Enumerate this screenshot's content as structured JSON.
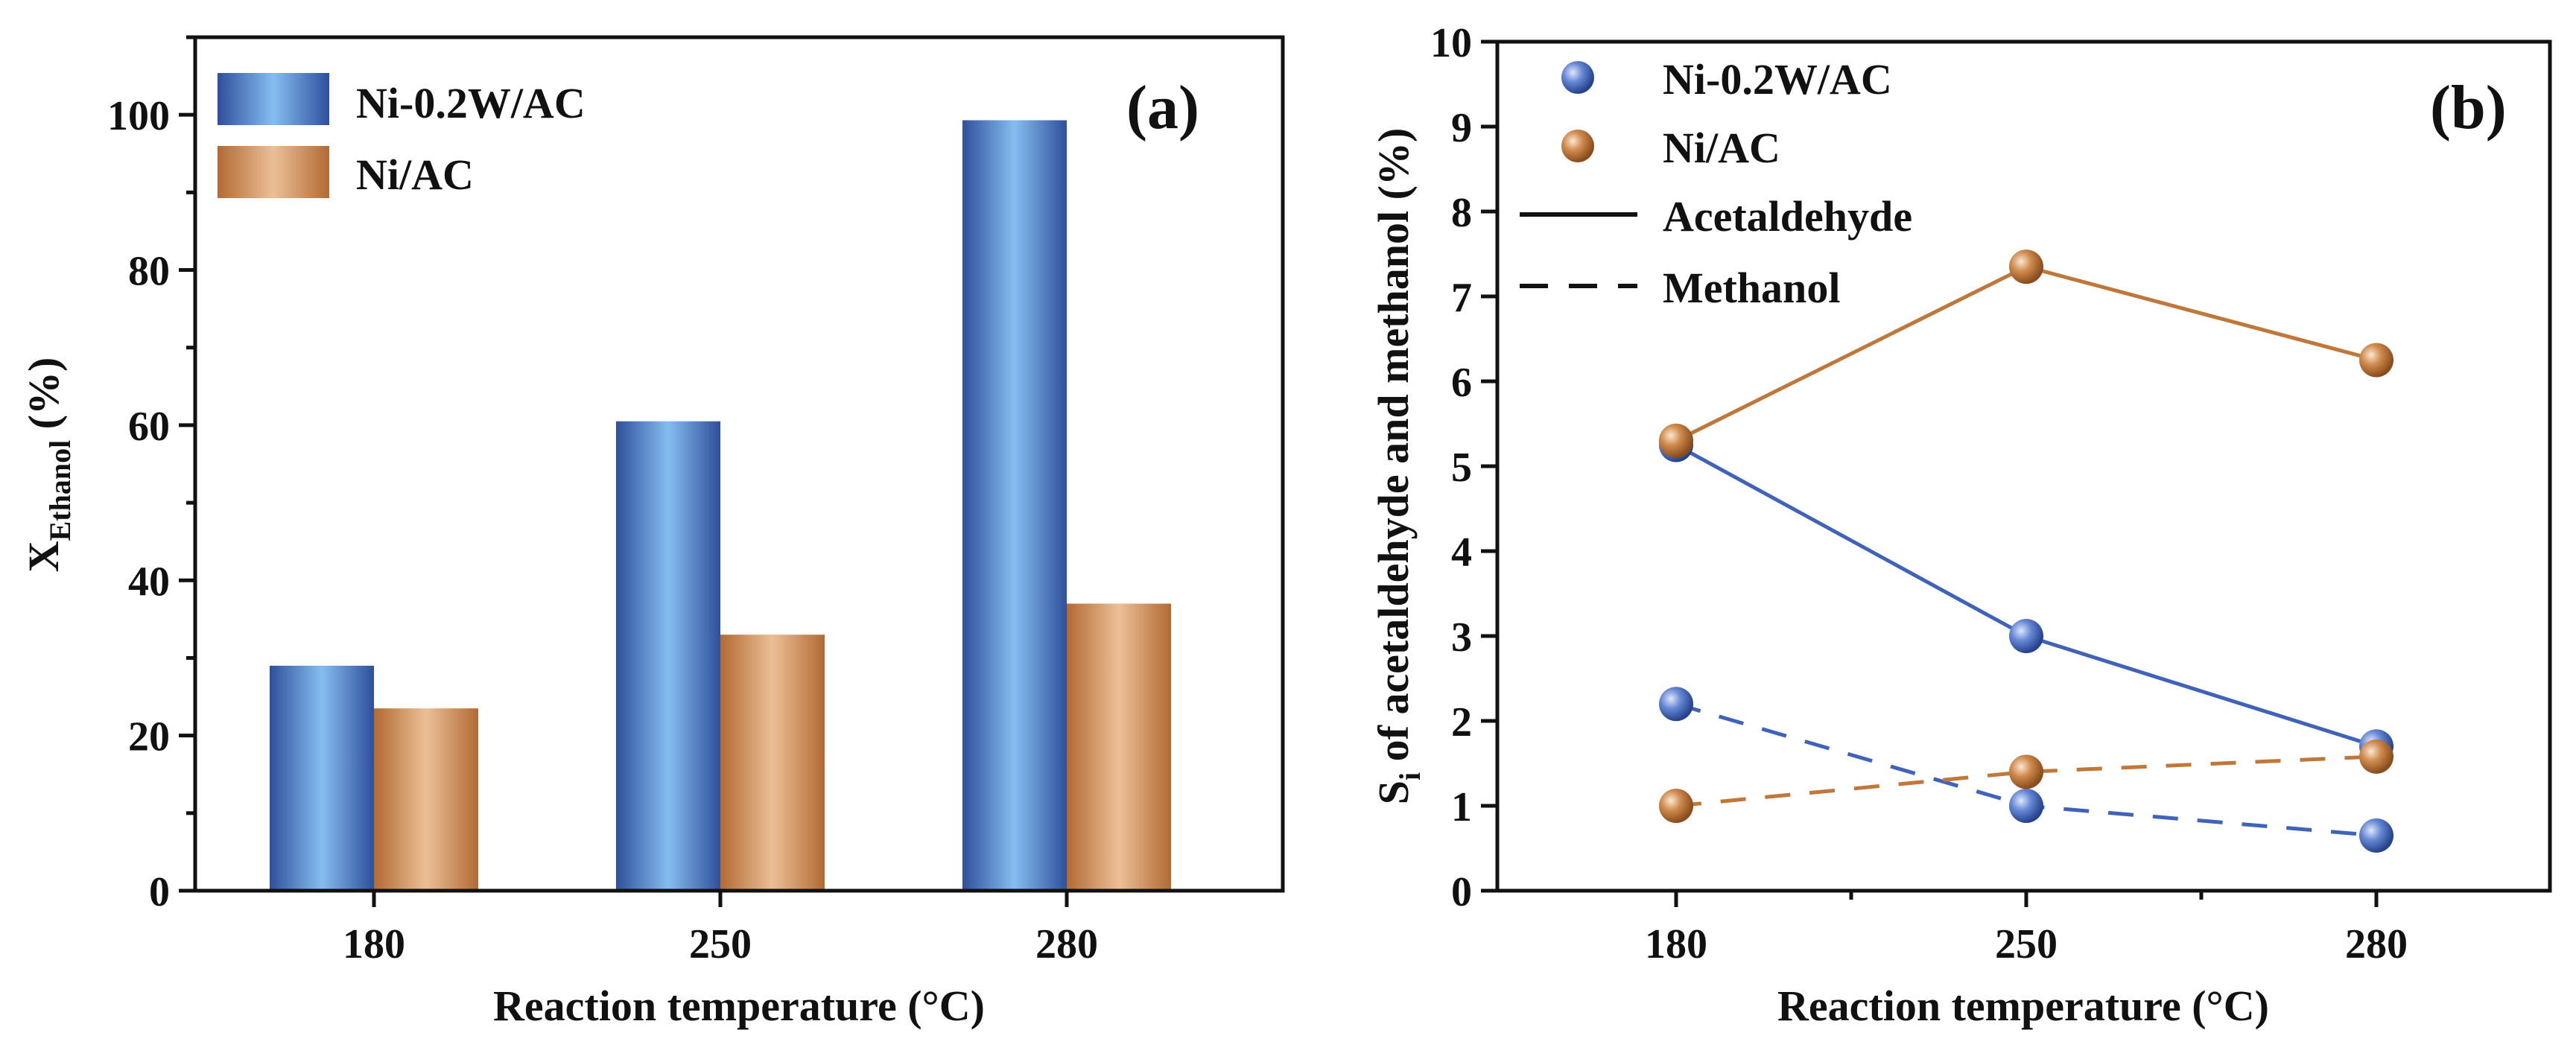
{
  "chart_data": [
    {
      "type": "bar",
      "panel_tag": "(a)",
      "categories": [
        "180",
        "250",
        "280"
      ],
      "series": [
        {
          "name": "Ni-0.2W/AC",
          "values": [
            29,
            60.5,
            99.3
          ]
        },
        {
          "name": "Ni/AC",
          "values": [
            23.5,
            33,
            37
          ]
        }
      ],
      "xlabel": "Reaction temperature (°C)",
      "ylabel_main": "X",
      "ylabel_sub": "Ethanol",
      "ylabel_tail": " (%)",
      "ylim": [
        0,
        110
      ],
      "yticks": [
        "0",
        "20",
        "40",
        "60",
        "80",
        "100"
      ],
      "legend_position": "top-left",
      "grid": false
    },
    {
      "type": "line",
      "panel_tag": "(b)",
      "x": [
        "180",
        "250",
        "280"
      ],
      "series": [
        {
          "name": "Ni-0.2W/AC",
          "product": "Acetaldehyde",
          "values": [
            5.25,
            3.0,
            1.7
          ]
        },
        {
          "name": "Ni/AC",
          "product": "Acetaldehyde",
          "values": [
            5.3,
            7.35,
            6.25
          ]
        },
        {
          "name": "Ni-0.2W/AC",
          "product": "Methanol",
          "values": [
            2.2,
            1.0,
            0.65
          ]
        },
        {
          "name": "Ni/AC",
          "product": "Methanol",
          "values": [
            1.0,
            1.4,
            1.58
          ]
        }
      ],
      "xlabel": "Reaction temperature (°C)",
      "ylabel_main": "S",
      "ylabel_sub": "i",
      "ylabel_tail": " of acetaldehyde and methanol (%)",
      "ylim": [
        0,
        10
      ],
      "yticks": [
        "0",
        "1",
        "2",
        "3",
        "4",
        "5",
        "6",
        "7",
        "8",
        "9",
        "10"
      ],
      "legend": {
        "markers": [
          "Ni-0.2W/AC",
          "Ni/AC"
        ],
        "lines": [
          "Acetaldehyde",
          "Methanol"
        ]
      },
      "legend_position": "top-left",
      "grid": false
    }
  ],
  "colors": {
    "ni_w": "#3f63b8",
    "ni_w_light": "#7fb7ea",
    "ni": "#c0773a",
    "ni_light": "#e6b48a"
  }
}
